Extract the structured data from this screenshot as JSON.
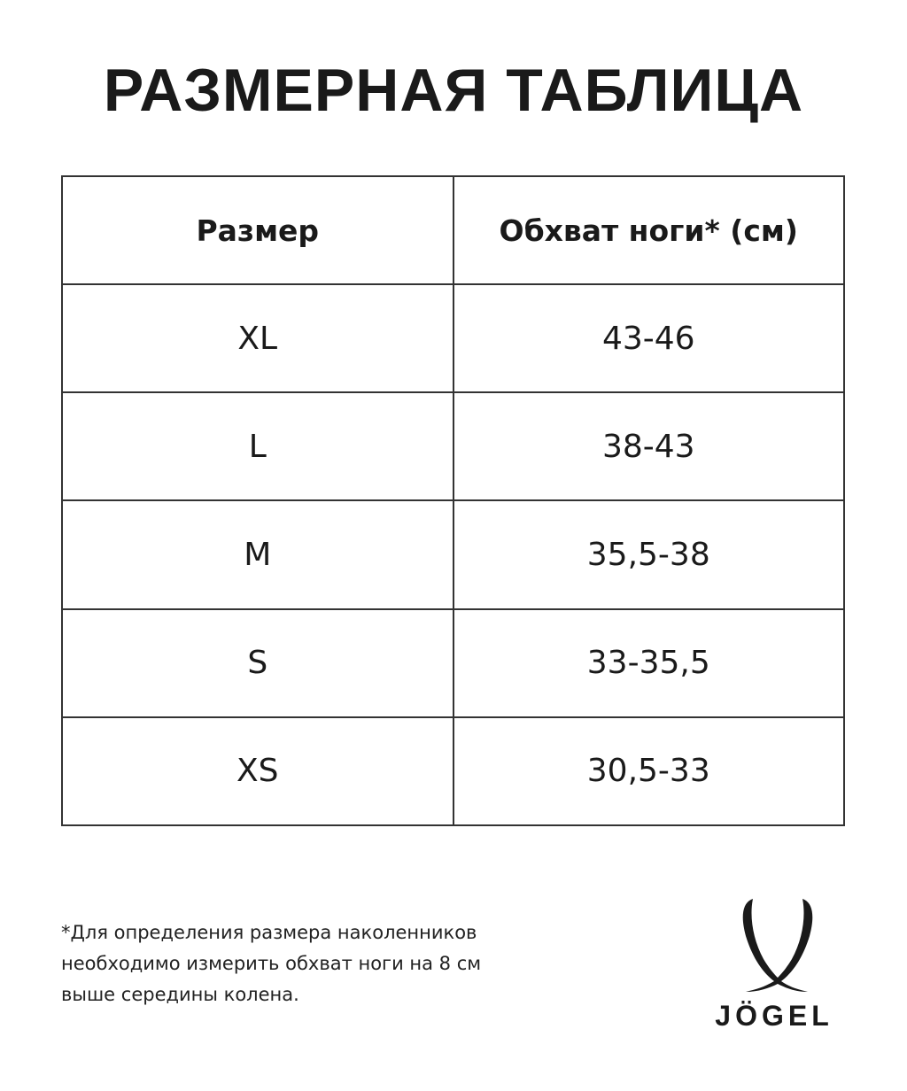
{
  "title": "РАЗМЕРНАЯ ТАБЛИЦА",
  "table": {
    "headers": [
      "Размер",
      "Обхват ноги* (см)"
    ],
    "rows": [
      [
        "XL",
        "43-46"
      ],
      [
        "L",
        "38-43"
      ],
      [
        "M",
        "35,5-38"
      ],
      [
        "S",
        "33-35,5"
      ],
      [
        "XS",
        "30,5-33"
      ]
    ]
  },
  "footnote": [
    "*Для определения размера наколенников",
    "необходимо измерить обхват ноги на 8 см",
    "выше середины колена."
  ],
  "logo": {
    "text": "JÖGEL",
    "color": "#1a1a1a"
  }
}
